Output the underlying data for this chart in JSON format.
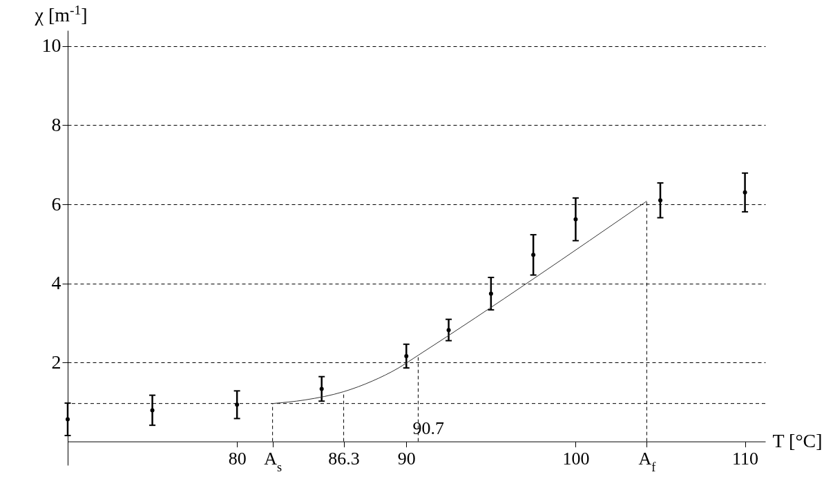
{
  "chart_data": {
    "type": "scatter",
    "xlabel": "T [°C]",
    "ylabel": "χ [m$^{-1}$]",
    "xlim": [
      70,
      111.2
    ],
    "ylim": [
      -0.6,
      10.4
    ],
    "xticks": [
      80,
      {
        "value": 82.1,
        "label": "A$_{s}$"
      },
      86.3,
      90,
      100,
      {
        "value": 104.2,
        "label": "A$_{f}$"
      },
      110
    ],
    "yticks": [
      2,
      4,
      6,
      8,
      10
    ],
    "grid": "y",
    "series": [
      {
        "marker": "circle",
        "color": "#000000",
        "x": [
          70,
          75,
          80,
          85,
          90,
          92.5,
          95,
          97.5,
          100,
          105,
          110
        ],
        "values": [
          0.56,
          0.79,
          0.93,
          1.33,
          2.16,
          2.82,
          3.74,
          4.72,
          5.62,
          6.1,
          6.3
        ],
        "errors": [
          0.41,
          0.38,
          0.35,
          0.31,
          0.3,
          0.27,
          0.41,
          0.51,
          0.54,
          0.44,
          0.49
        ]
      },
      {
        "type": "line",
        "color": "#333333",
        "x": [
          82.1,
          84,
          86.3,
          88,
          89.5,
          90.7,
          104.2
        ],
        "values": [
          0.96,
          1.05,
          1.26,
          1.53,
          1.85,
          2.18,
          6.08
        ]
      }
    ],
    "ref_lines": [
      {
        "axis": "y",
        "value": 0.96,
        "color": "#000000",
        "line_style": "dashed"
      },
      {
        "axis": "x",
        "value": 82.1,
        "color": "#000000",
        "line_style": "dashed"
      },
      {
        "axis": "x",
        "value": 86.3,
        "color": "#000000",
        "line_style": "dashed"
      },
      {
        "axis": "x",
        "value": 90.7,
        "label": "90.7",
        "color": "#000000",
        "line_style": "dashed"
      },
      {
        "axis": "x",
        "value": 104.2,
        "color": "#000000",
        "line_style": "dashed"
      }
    ]
  }
}
